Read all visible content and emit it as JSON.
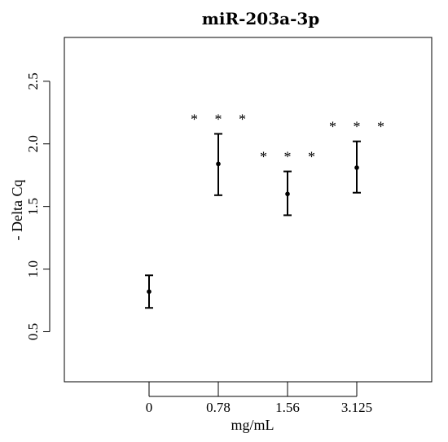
{
  "chart_data": {
    "type": "scatter",
    "title": "miR-203a-3p",
    "xlabel": "mg/mL",
    "ylabel": "- Delta Cq",
    "categories": [
      "0",
      "0.78",
      "1.56",
      "3.125"
    ],
    "ylim": [
      0.1,
      2.85
    ],
    "yticks": [
      "0.5",
      "1.0",
      "1.5",
      "2.0",
      "2.5"
    ],
    "series": [
      {
        "values": [
          0.82,
          1.84,
          1.6,
          1.81
        ],
        "lower": [
          0.69,
          1.59,
          1.43,
          1.61
        ],
        "upper": [
          0.95,
          2.08,
          1.78,
          2.02
        ]
      }
    ],
    "annotations": [
      "",
      "* * *",
      "* * *",
      "* * *"
    ],
    "grid": false
  }
}
